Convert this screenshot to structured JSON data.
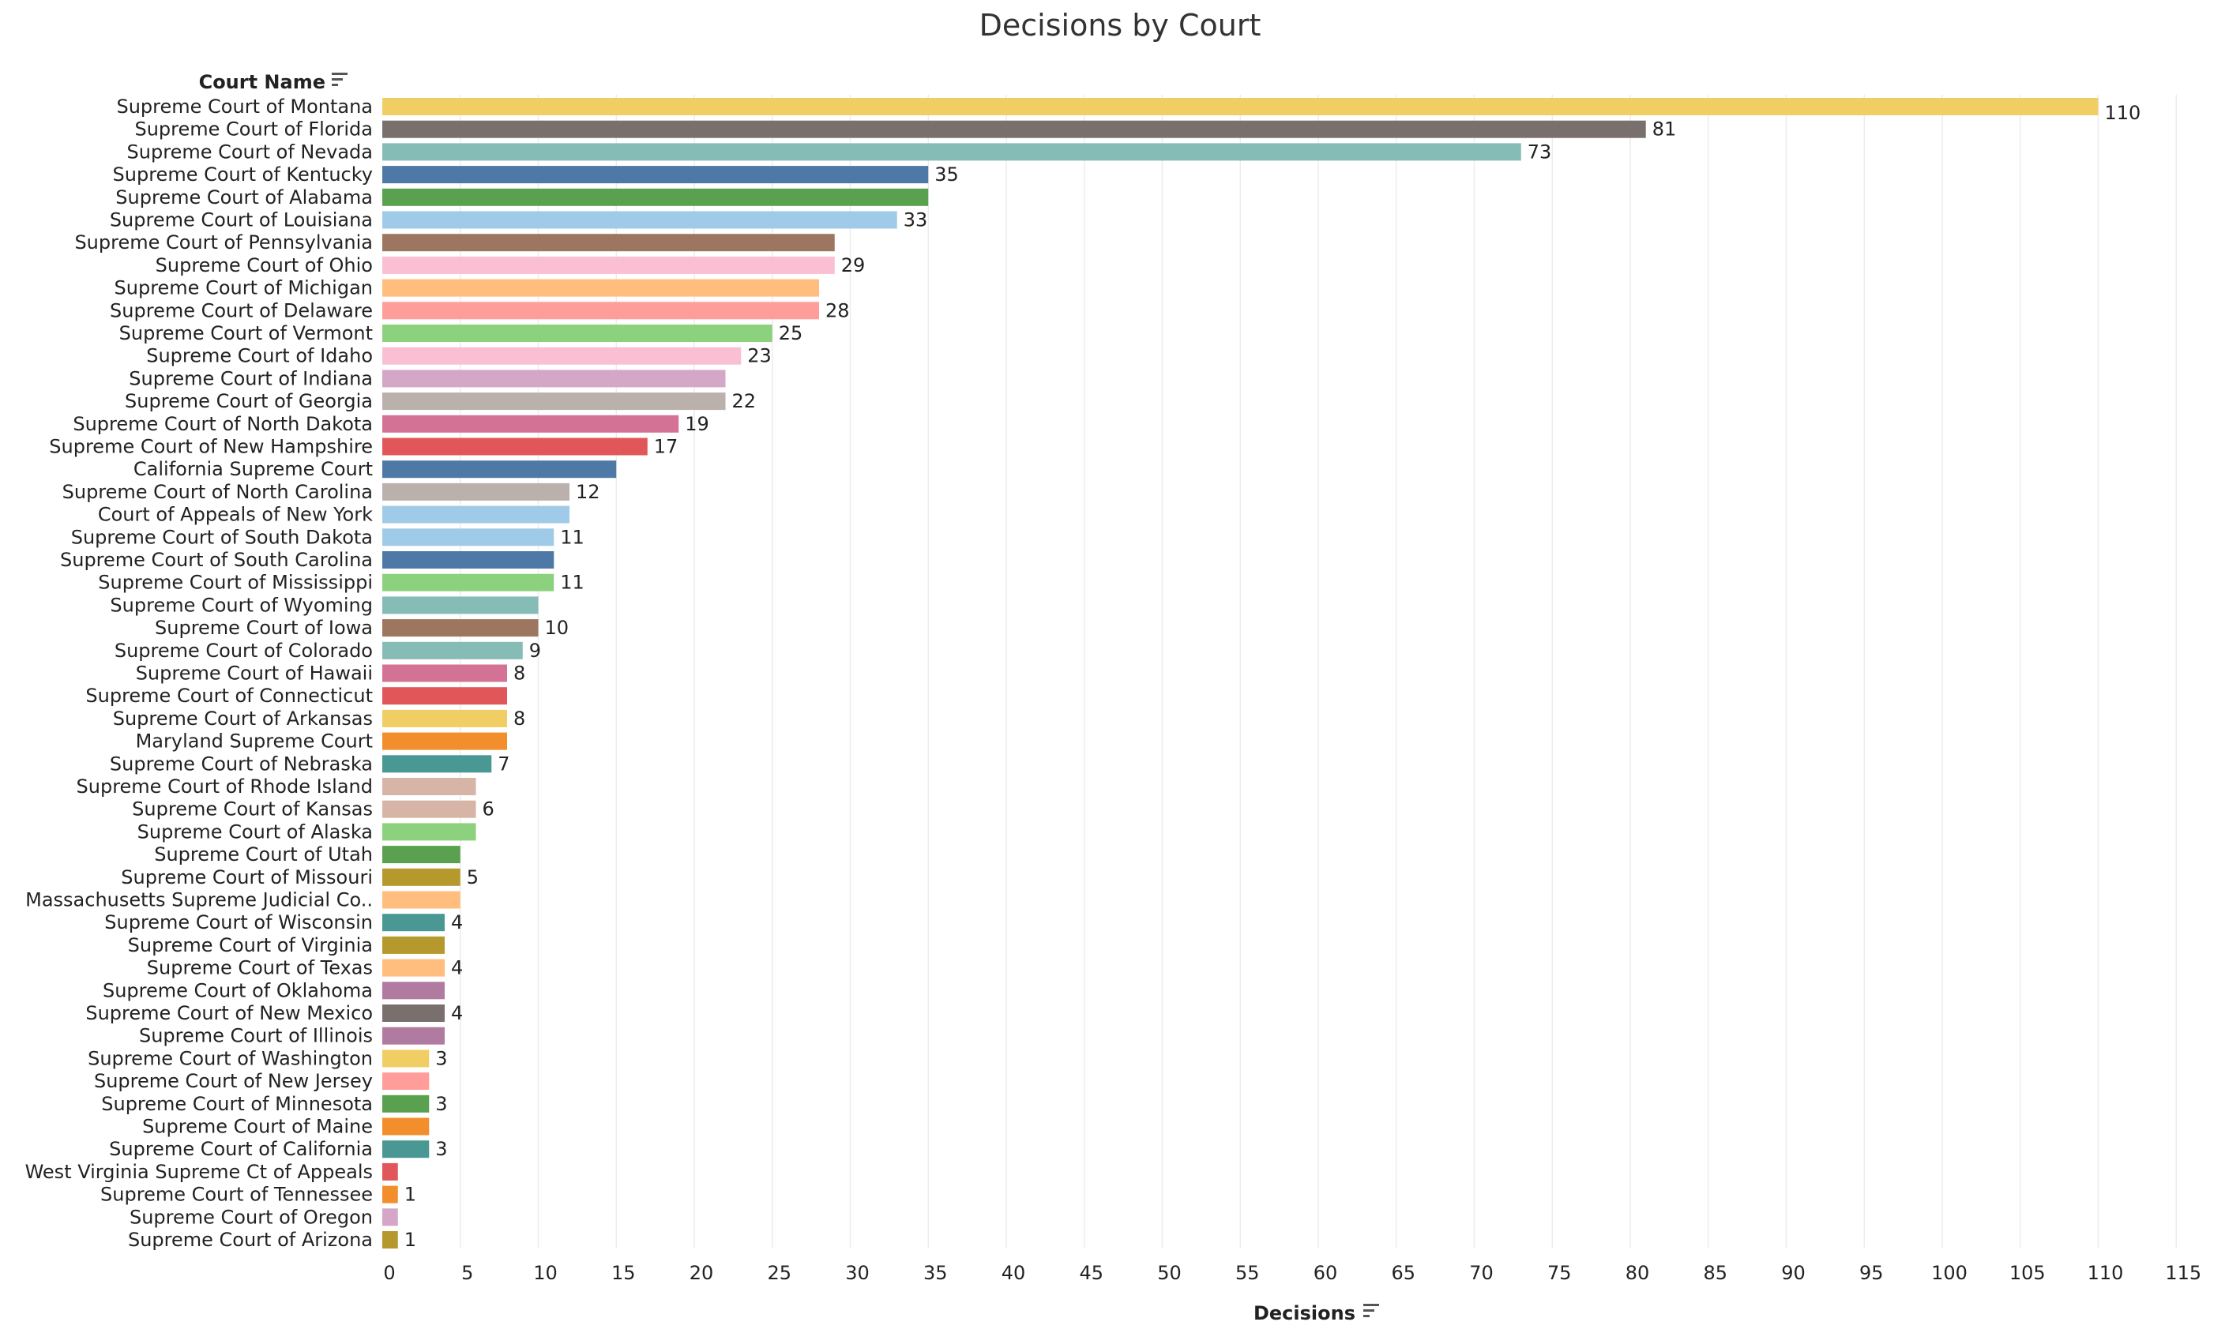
{
  "chart_data": {
    "type": "bar",
    "orientation": "horizontal",
    "title": "Decisions by Court",
    "ylabel": "Court Name",
    "xlabel": "Decisions",
    "xlim": [
      0,
      115
    ],
    "x_ticks": [
      0,
      5,
      10,
      15,
      20,
      25,
      30,
      35,
      40,
      45,
      50,
      55,
      60,
      65,
      70,
      75,
      80,
      85,
      90,
      95,
      100,
      105,
      110,
      115
    ],
    "grid": true,
    "legend": "none",
    "categories": [
      "Supreme Court of Montana",
      "Supreme Court of Florida",
      "Supreme Court of Nevada",
      "Supreme Court of Kentucky",
      "Supreme Court of Alabama",
      "Supreme Court of Louisiana",
      "Supreme Court of Pennsylvania",
      "Supreme Court of Ohio",
      "Supreme Court of Michigan",
      "Supreme Court of Delaware",
      "Supreme Court of Vermont",
      "Supreme Court of Idaho",
      "Supreme Court of Indiana",
      "Supreme Court of Georgia",
      "Supreme Court of North Dakota",
      "Supreme Court of New Hampshire",
      "California Supreme Court",
      "Supreme Court of North Carolina",
      "Court of Appeals of New York",
      "Supreme Court of South Dakota",
      "Supreme Court of South Carolina",
      "Supreme Court of Mississippi",
      "Supreme Court of Wyoming",
      "Supreme Court of Iowa",
      "Supreme Court of Colorado",
      "Supreme Court of Hawaii",
      "Supreme Court of Connecticut",
      "Supreme Court of Arkansas",
      "Maryland Supreme Court",
      "Supreme Court of Nebraska",
      "Supreme Court of Rhode Island",
      "Supreme Court of Kansas",
      "Supreme Court of Alaska",
      "Supreme Court of Utah",
      "Supreme Court of Missouri",
      "Massachusetts Supreme Judicial Co..",
      "Supreme Court of Wisconsin",
      "Supreme Court of Virginia",
      "Supreme Court of Texas",
      "Supreme Court of Oklahoma",
      "Supreme Court of New Mexico",
      "Supreme Court of Illinois",
      "Supreme Court of Washington",
      "Supreme Court of New Jersey",
      "Supreme Court of Minnesota",
      "Supreme Court of Maine",
      "Supreme Court of California",
      "West Virginia Supreme Ct of Appeals",
      "Supreme Court of Tennessee",
      "Supreme Court of Oregon",
      "Supreme Court of Arizona"
    ],
    "values": [
      110,
      81,
      73,
      35,
      35,
      33,
      29,
      29,
      28,
      28,
      25,
      23,
      22,
      22,
      19,
      17,
      15,
      12,
      12,
      11,
      11,
      11,
      10,
      10,
      9,
      8,
      8,
      8,
      8,
      7,
      6,
      6,
      6,
      5,
      5,
      5,
      4,
      4,
      4,
      4,
      4,
      4,
      3,
      3,
      3,
      3,
      3,
      1,
      1,
      1,
      1
    ],
    "labels": [
      "110",
      "81",
      "73",
      "35",
      "",
      "33",
      "",
      "29",
      "",
      "28",
      "25",
      "23",
      "",
      "22",
      "19",
      "17",
      "",
      "12",
      "",
      "11",
      "",
      "11",
      "",
      "10",
      "9",
      "8",
      "",
      "8",
      "",
      "7",
      "",
      "6",
      "",
      "",
      "5",
      "",
      "4",
      "",
      "4",
      "",
      "4",
      "",
      "3",
      "",
      "3",
      "",
      "3",
      "",
      "1",
      "",
      "1"
    ],
    "colors": [
      "#F1CE63",
      "#79706E",
      "#86BCB6",
      "#4E79A7",
      "#59A14F",
      "#A0CBE8",
      "#9D7660",
      "#FABFD2",
      "#FFBE7D",
      "#FF9D9A",
      "#8CD17D",
      "#FABFD2",
      "#D4A6C8",
      "#BAB0AC",
      "#D37295",
      "#E15759",
      "#4E79A7",
      "#BAB0AC",
      "#A0CBE8",
      "#A0CBE8",
      "#4E79A7",
      "#8CD17D",
      "#86BCB6",
      "#9D7660",
      "#86BCB6",
      "#D37295",
      "#E15759",
      "#F1CE63",
      "#F28E2B",
      "#499894",
      "#D7B5A6",
      "#D7B5A6",
      "#8CD17D",
      "#59A14F",
      "#B6992D",
      "#FFBE7D",
      "#499894",
      "#B6992D",
      "#FFBE7D",
      "#B07AA1",
      "#79706E",
      "#B07AA1",
      "#F1CE63",
      "#FF9D9A",
      "#59A14F",
      "#F28E2B",
      "#499894",
      "#E15759",
      "#F28E2B",
      "#D4A6C8",
      "#B6992D"
    ]
  }
}
